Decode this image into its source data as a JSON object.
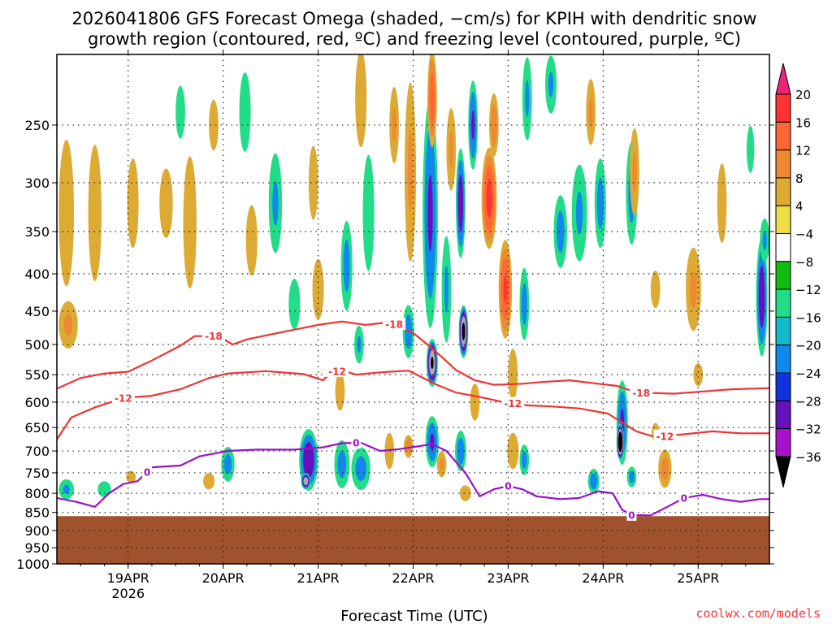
{
  "chart_data": {
    "type": "heatmap",
    "title_lines": [
      "2026041806 GFS Forecast Omega (shaded, −cm/s) for KPIH with dendritic snow",
      "growth region (contoured, red, ºC) and freezing level (contoured, purple, ºC)"
    ],
    "xlabel": "Forecast Time (UTC)",
    "ylabel": "",
    "x_range_days": [
      0,
      7.5
    ],
    "x_ticks": [
      {
        "day": 0.75,
        "label": "19APR",
        "sub": "2026"
      },
      {
        "day": 1.75,
        "label": "20APR",
        "sub": ""
      },
      {
        "day": 2.75,
        "label": "21APR",
        "sub": ""
      },
      {
        "day": 3.75,
        "label": "22APR",
        "sub": ""
      },
      {
        "day": 4.75,
        "label": "23APR",
        "sub": ""
      },
      {
        "day": 5.75,
        "label": "24APR",
        "sub": ""
      },
      {
        "day": 6.75,
        "label": "25APR",
        "sub": ""
      }
    ],
    "y_range_hpa": [
      200,
      1000
    ],
    "y_ticks": [
      250,
      300,
      350,
      400,
      450,
      500,
      550,
      600,
      650,
      700,
      750,
      800,
      850,
      900,
      950,
      1000
    ],
    "grid": true,
    "terrain_top_hpa": 860,
    "terrain_color": "#a0522d",
    "colorbar": {
      "labels": [
        "20",
        "16",
        "12",
        "8",
        "4",
        "−4",
        "−8",
        "−12",
        "−16",
        "−20",
        "−24",
        "−28",
        "−32",
        "−36"
      ],
      "colors": [
        "#ff3333",
        "#ff6633",
        "#ee8833",
        "#ddaa33",
        "#eedd44",
        "#ffffff",
        "#11bb11",
        "#22dd88",
        "#11bbcc",
        "#1188ee",
        "#1133dd",
        "#6611bb",
        "#aa11cc",
        "#aaaaaa"
      ],
      "top_color": "#ee2277",
      "bottom_color": "#000000"
    },
    "blobs": [
      {
        "d": 0.1,
        "p": 330,
        "wd": 0.08,
        "hp": 150,
        "v": 6
      },
      {
        "d": 0.12,
        "p": 470,
        "wd": 0.1,
        "hp": 70,
        "v": 8
      },
      {
        "d": 0.1,
        "p": 790,
        "wd": 0.08,
        "hp": 50,
        "v": -8
      },
      {
        "d": 0.4,
        "p": 330,
        "wd": 0.07,
        "hp": 140,
        "v": 5
      },
      {
        "d": 0.5,
        "p": 790,
        "wd": 0.07,
        "hp": 40,
        "v": -6
      },
      {
        "d": 0.8,
        "p": 320,
        "wd": 0.06,
        "hp": 90,
        "v": 5
      },
      {
        "d": 0.78,
        "p": 760,
        "wd": 0.05,
        "hp": 30,
        "v": 5
      },
      {
        "d": 1.15,
        "p": 320,
        "wd": 0.07,
        "hp": 70,
        "v": 5
      },
      {
        "d": 1.4,
        "p": 340,
        "wd": 0.07,
        "hp": 140,
        "v": 6
      },
      {
        "d": 1.3,
        "p": 240,
        "wd": 0.05,
        "hp": 40,
        "v": -6
      },
      {
        "d": 1.65,
        "p": 250,
        "wd": 0.05,
        "hp": 40,
        "v": 5
      },
      {
        "d": 1.6,
        "p": 770,
        "wd": 0.06,
        "hp": 40,
        "v": 5
      },
      {
        "d": 1.8,
        "p": 730,
        "wd": 0.07,
        "hp": 80,
        "v": -9
      },
      {
        "d": 1.98,
        "p": 240,
        "wd": 0.06,
        "hp": 60,
        "v": -7
      },
      {
        "d": 2.05,
        "p": 360,
        "wd": 0.06,
        "hp": 80,
        "v": 5
      },
      {
        "d": 2.3,
        "p": 320,
        "wd": 0.07,
        "hp": 100,
        "v": -8
      },
      {
        "d": 2.5,
        "p": 440,
        "wd": 0.06,
        "hp": 70,
        "v": -7
      },
      {
        "d": 2.75,
        "p": 420,
        "wd": 0.06,
        "hp": 80,
        "v": 6
      },
      {
        "d": 2.7,
        "p": 300,
        "wd": 0.05,
        "hp": 70,
        "v": 5
      },
      {
        "d": 2.65,
        "p": 720,
        "wd": 0.1,
        "hp": 140,
        "v": -15
      },
      {
        "d": 2.62,
        "p": 770,
        "wd": 0.05,
        "hp": 40,
        "v": -19
      },
      {
        "d": 2.98,
        "p": 580,
        "wd": 0.05,
        "hp": 70,
        "v": 6
      },
      {
        "d": 3.05,
        "p": 390,
        "wd": 0.06,
        "hp": 110,
        "v": -9
      },
      {
        "d": 3.0,
        "p": 730,
        "wd": 0.08,
        "hp": 110,
        "v": -9
      },
      {
        "d": 3.18,
        "p": 500,
        "wd": 0.05,
        "hp": 60,
        "v": -8
      },
      {
        "d": 3.28,
        "p": 330,
        "wd": 0.06,
        "hp": 120,
        "v": -7
      },
      {
        "d": 3.2,
        "p": 740,
        "wd": 0.1,
        "hp": 100,
        "v": -9
      },
      {
        "d": 3.2,
        "p": 230,
        "wd": 0.06,
        "hp": 70,
        "v": 6
      },
      {
        "d": 3.55,
        "p": 250,
        "wd": 0.05,
        "hp": 60,
        "v": 8
      },
      {
        "d": 3.5,
        "p": 700,
        "wd": 0.05,
        "hp": 80,
        "v": 6
      },
      {
        "d": 3.7,
        "p": 480,
        "wd": 0.06,
        "hp": 80,
        "v": -10
      },
      {
        "d": 3.7,
        "p": 690,
        "wd": 0.05,
        "hp": 50,
        "v": 10
      },
      {
        "d": 3.72,
        "p": 290,
        "wd": 0.06,
        "hp": 160,
        "v": 8
      },
      {
        "d": 3.93,
        "p": 330,
        "wd": 0.08,
        "hp": 230,
        "v": -12
      },
      {
        "d": 3.95,
        "p": 530,
        "wd": 0.06,
        "hp": 80,
        "v": -20
      },
      {
        "d": 3.95,
        "p": 680,
        "wd": 0.07,
        "hp": 110,
        "v": -12
      },
      {
        "d": 3.95,
        "p": 230,
        "wd": 0.05,
        "hp": 70,
        "v": 14
      },
      {
        "d": 4.1,
        "p": 420,
        "wd": 0.05,
        "hp": 140,
        "v": -8
      },
      {
        "d": 4.05,
        "p": 730,
        "wd": 0.05,
        "hp": 60,
        "v": 8
      },
      {
        "d": 4.15,
        "p": 270,
        "wd": 0.05,
        "hp": 70,
        "v": 8
      },
      {
        "d": 4.25,
        "p": 320,
        "wd": 0.05,
        "hp": 110,
        "v": -14
      },
      {
        "d": 4.28,
        "p": 480,
        "wd": 0.05,
        "hp": 80,
        "v": -21
      },
      {
        "d": 4.25,
        "p": 700,
        "wd": 0.06,
        "hp": 90,
        "v": -10
      },
      {
        "d": 4.3,
        "p": 800,
        "wd": 0.06,
        "hp": 40,
        "v": 6
      },
      {
        "d": 4.38,
        "p": 250,
        "wd": 0.05,
        "hp": 70,
        "v": -12
      },
      {
        "d": 4.4,
        "p": 600,
        "wd": 0.05,
        "hp": 70,
        "v": 6
      },
      {
        "d": 4.55,
        "p": 315,
        "wd": 0.08,
        "hp": 100,
        "v": 17
      },
      {
        "d": 4.6,
        "p": 250,
        "wd": 0.05,
        "hp": 50,
        "v": 10
      },
      {
        "d": 4.72,
        "p": 420,
        "wd": 0.07,
        "hp": 130,
        "v": 16
      },
      {
        "d": 4.8,
        "p": 550,
        "wd": 0.05,
        "hp": 90,
        "v": 6
      },
      {
        "d": 4.8,
        "p": 700,
        "wd": 0.06,
        "hp": 80,
        "v": 7
      },
      {
        "d": 4.92,
        "p": 440,
        "wd": 0.05,
        "hp": 100,
        "v": -9
      },
      {
        "d": 4.92,
        "p": 720,
        "wd": 0.05,
        "hp": 70,
        "v": -9
      },
      {
        "d": 4.95,
        "p": 230,
        "wd": 0.05,
        "hp": 60,
        "v": -8
      },
      {
        "d": 5.2,
        "p": 220,
        "wd": 0.06,
        "hp": 40,
        "v": -8
      },
      {
        "d": 5.3,
        "p": 350,
        "wd": 0.07,
        "hp": 80,
        "v": -9
      },
      {
        "d": 5.5,
        "p": 330,
        "wd": 0.08,
        "hp": 100,
        "v": -8
      },
      {
        "d": 5.62,
        "p": 240,
        "wd": 0.05,
        "hp": 50,
        "v": 8
      },
      {
        "d": 5.72,
        "p": 320,
        "wd": 0.06,
        "hp": 90,
        "v": -9
      },
      {
        "d": 5.65,
        "p": 770,
        "wd": 0.06,
        "hp": 60,
        "v": -10
      },
      {
        "d": 5.95,
        "p": 640,
        "wd": 0.06,
        "hp": 170,
        "v": -12
      },
      {
        "d": 5.93,
        "p": 680,
        "wd": 0.04,
        "hp": 80,
        "v": -26
      },
      {
        "d": 6.05,
        "p": 310,
        "wd": 0.06,
        "hp": 100,
        "v": -9
      },
      {
        "d": 6.08,
        "p": 290,
        "wd": 0.05,
        "hp": 80,
        "v": 8
      },
      {
        "d": 6.05,
        "p": 760,
        "wd": 0.05,
        "hp": 50,
        "v": -9
      },
      {
        "d": 6.4,
        "p": 740,
        "wd": 0.07,
        "hp": 90,
        "v": 9
      },
      {
        "d": 6.3,
        "p": 420,
        "wd": 0.05,
        "hp": 50,
        "v": 6
      },
      {
        "d": 6.7,
        "p": 420,
        "wd": 0.08,
        "hp": 110,
        "v": 8
      },
      {
        "d": 6.75,
        "p": 550,
        "wd": 0.05,
        "hp": 40,
        "v": 5
      },
      {
        "d": 7.0,
        "p": 320,
        "wd": 0.05,
        "hp": 80,
        "v": 6
      },
      {
        "d": 7.3,
        "p": 270,
        "wd": 0.04,
        "hp": 40,
        "v": -7
      },
      {
        "d": 7.42,
        "p": 430,
        "wd": 0.06,
        "hp": 160,
        "v": -14
      },
      {
        "d": 7.45,
        "p": 360,
        "wd": 0.05,
        "hp": 50,
        "v": -8
      },
      {
        "d": 6.3,
        "p": 660,
        "wd": 0.04,
        "hp": 40,
        "v": 5
      }
    ],
    "contours": [
      {
        "name": "-18",
        "color": "#ee3333",
        "labels": [
          {
            "d": 1.65,
            "label": "-18"
          },
          {
            "d": 3.55,
            "label": "-18"
          },
          {
            "d": 6.15,
            "label": "-18"
          }
        ],
        "points": [
          [
            0,
            575
          ],
          [
            0.25,
            556
          ],
          [
            0.5,
            548
          ],
          [
            0.75,
            545
          ],
          [
            1.0,
            526
          ],
          [
            1.3,
            502
          ],
          [
            1.45,
            487
          ],
          [
            1.7,
            487
          ],
          [
            1.85,
            500
          ],
          [
            2.0,
            492
          ],
          [
            2.4,
            480
          ],
          [
            2.75,
            470
          ],
          [
            3.0,
            465
          ],
          [
            3.25,
            470
          ],
          [
            3.5,
            466
          ],
          [
            3.75,
            482
          ],
          [
            3.9,
            500
          ],
          [
            4.05,
            520
          ],
          [
            4.2,
            542
          ],
          [
            4.4,
            560
          ],
          [
            4.6,
            568
          ],
          [
            4.9,
            566
          ],
          [
            5.1,
            563
          ],
          [
            5.4,
            560
          ],
          [
            5.7,
            566
          ],
          [
            5.9,
            570
          ],
          [
            6.1,
            582
          ],
          [
            6.5,
            584
          ],
          [
            6.8,
            580
          ],
          [
            7.1,
            576
          ],
          [
            7.5,
            574
          ]
        ]
      },
      {
        "name": "-12",
        "color": "#ee3333",
        "labels": [
          {
            "d": 0.7,
            "label": "-12"
          },
          {
            "d": 2.95,
            "label": "-12"
          },
          {
            "d": 4.8,
            "label": "-12"
          },
          {
            "d": 6.4,
            "label": "-12"
          }
        ],
        "points": [
          [
            0,
            675
          ],
          [
            0.15,
            630
          ],
          [
            0.4,
            610
          ],
          [
            0.7,
            592
          ],
          [
            1.0,
            588
          ],
          [
            1.3,
            576
          ],
          [
            1.6,
            556
          ],
          [
            1.8,
            548
          ],
          [
            2.2,
            544
          ],
          [
            2.6,
            549
          ],
          [
            2.8,
            560
          ],
          [
            2.9,
            545
          ],
          [
            3.0,
            543
          ],
          [
            3.15,
            550
          ],
          [
            3.4,
            546
          ],
          [
            3.7,
            543
          ],
          [
            4.0,
            568
          ],
          [
            4.2,
            582
          ],
          [
            4.5,
            592
          ],
          [
            4.7,
            600
          ],
          [
            4.95,
            606
          ],
          [
            5.2,
            608
          ],
          [
            5.5,
            612
          ],
          [
            5.8,
            622
          ],
          [
            6.1,
            658
          ],
          [
            6.3,
            670
          ],
          [
            6.6,
            664
          ],
          [
            6.9,
            658
          ],
          [
            7.2,
            662
          ],
          [
            7.5,
            662
          ]
        ]
      },
      {
        "name": "0",
        "color": "#9911cc",
        "labels": [
          {
            "d": 0.95,
            "label": "0"
          },
          {
            "d": 3.15,
            "label": "0"
          },
          {
            "d": 4.75,
            "label": "0"
          },
          {
            "d": 6.05,
            "label": "0"
          },
          {
            "d": 6.6,
            "label": "0"
          }
        ],
        "points": [
          [
            0,
            812
          ],
          [
            0.2,
            822
          ],
          [
            0.4,
            835
          ],
          [
            0.55,
            800
          ],
          [
            0.7,
            777
          ],
          [
            0.85,
            770
          ],
          [
            1.0,
            737
          ],
          [
            1.3,
            733
          ],
          [
            1.5,
            712
          ],
          [
            1.8,
            700
          ],
          [
            2.1,
            697
          ],
          [
            2.5,
            697
          ],
          [
            2.8,
            692
          ],
          [
            3.0,
            683
          ],
          [
            3.2,
            682
          ],
          [
            3.4,
            700
          ],
          [
            3.6,
            696
          ],
          [
            3.8,
            690
          ],
          [
            3.95,
            685
          ],
          [
            4.1,
            700
          ],
          [
            4.3,
            750
          ],
          [
            4.45,
            808
          ],
          [
            4.6,
            790
          ],
          [
            4.75,
            782
          ],
          [
            4.9,
            790
          ],
          [
            5.05,
            808
          ],
          [
            5.3,
            815
          ],
          [
            5.5,
            812
          ],
          [
            5.7,
            795
          ],
          [
            5.85,
            800
          ],
          [
            5.95,
            843
          ],
          [
            6.05,
            857
          ],
          [
            6.25,
            858
          ],
          [
            6.45,
            832
          ],
          [
            6.6,
            812
          ],
          [
            6.8,
            804
          ],
          [
            7.0,
            815
          ],
          [
            7.2,
            822
          ],
          [
            7.4,
            815
          ],
          [
            7.5,
            815
          ]
        ]
      }
    ]
  },
  "watermark": "coolwx.com/models"
}
